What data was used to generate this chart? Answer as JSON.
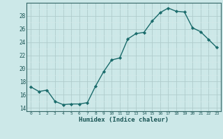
{
  "x": [
    0,
    1,
    2,
    3,
    4,
    5,
    6,
    7,
    8,
    9,
    10,
    11,
    12,
    13,
    14,
    15,
    16,
    17,
    18,
    19,
    20,
    21,
    22,
    23
  ],
  "y": [
    17.2,
    16.5,
    16.7,
    15.0,
    14.5,
    14.6,
    14.6,
    14.8,
    17.3,
    19.5,
    21.3,
    21.6,
    24.5,
    25.3,
    25.5,
    27.2,
    28.5,
    29.2,
    28.7,
    28.6,
    26.2,
    25.6,
    24.4,
    23.2
  ],
  "bg_color": "#cce8e8",
  "line_color": "#1a6b6b",
  "marker_color": "#1a6b6b",
  "grid_color_major": "#b0cccc",
  "grid_color_minor": "#d4e8e8",
  "xlabel": "Humidex (Indice chaleur)",
  "xlim": [
    -0.5,
    23.5
  ],
  "ylim": [
    13.5,
    30.0
  ],
  "yticks": [
    14,
    16,
    18,
    20,
    22,
    24,
    26,
    28
  ],
  "axis_color": "#336666",
  "font_color": "#1a5555"
}
